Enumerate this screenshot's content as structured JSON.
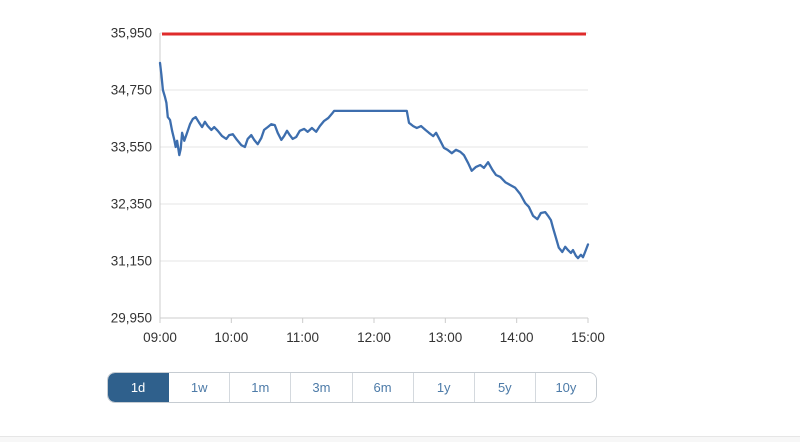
{
  "colors": {
    "line_blue": "#3d6eae",
    "limit_red": "#df2b2b",
    "gridline": "#e6e6e6",
    "axis": "#cccccc",
    "axis_text": "#333333",
    "selected_range_bg": "#2f608c",
    "range_text": "#4d7ba8"
  },
  "ranges": {
    "items": [
      {
        "label": "1d",
        "selected": true
      },
      {
        "label": "1w",
        "selected": false
      },
      {
        "label": "1m",
        "selected": false
      },
      {
        "label": "3m",
        "selected": false
      },
      {
        "label": "6m",
        "selected": false
      },
      {
        "label": "1y",
        "selected": false
      },
      {
        "label": "5y",
        "selected": false
      },
      {
        "label": "10y",
        "selected": false
      }
    ]
  },
  "chart_data": {
    "type": "line",
    "title": "",
    "xlabel": "",
    "ylabel": "",
    "grid": "horizontal-only",
    "legend": "none",
    "ylim": [
      29950,
      35950
    ],
    "xlim_hours": [
      9,
      15
    ],
    "y_ticks": [
      {
        "v": 35950,
        "label": "35,950"
      },
      {
        "v": 34750,
        "label": "34,750"
      },
      {
        "v": 33550,
        "label": "33,550"
      },
      {
        "v": 32350,
        "label": "32,350"
      },
      {
        "v": 31150,
        "label": "31,150"
      },
      {
        "v": 29950,
        "label": "29,950"
      }
    ],
    "x_ticks": [
      {
        "t": 9,
        "label": "09:00"
      },
      {
        "t": 10,
        "label": "10:00"
      },
      {
        "t": 11,
        "label": "11:00"
      },
      {
        "t": 12,
        "label": "12:00"
      },
      {
        "t": 13,
        "label": "13:00"
      },
      {
        "t": 14,
        "label": "14:00"
      },
      {
        "t": 15,
        "label": "15:00"
      }
    ],
    "red_line": {
      "name": "upper-limit-line",
      "value": 35930
    },
    "series": [
      {
        "name": "price",
        "points": [
          [
            9.0,
            35320
          ],
          [
            9.02,
            35070
          ],
          [
            9.04,
            34750
          ],
          [
            9.07,
            34600
          ],
          [
            9.09,
            34480
          ],
          [
            9.11,
            34180
          ],
          [
            9.14,
            34120
          ],
          [
            9.17,
            33890
          ],
          [
            9.2,
            33700
          ],
          [
            9.22,
            33550
          ],
          [
            9.24,
            33680
          ],
          [
            9.27,
            33380
          ],
          [
            9.29,
            33510
          ],
          [
            9.31,
            33850
          ],
          [
            9.34,
            33680
          ],
          [
            9.38,
            33850
          ],
          [
            9.42,
            34030
          ],
          [
            9.46,
            34140
          ],
          [
            9.5,
            34180
          ],
          [
            9.55,
            34060
          ],
          [
            9.59,
            33970
          ],
          [
            9.63,
            34080
          ],
          [
            9.67,
            33990
          ],
          [
            9.72,
            33910
          ],
          [
            9.76,
            33970
          ],
          [
            9.81,
            33890
          ],
          [
            9.87,
            33780
          ],
          [
            9.93,
            33720
          ],
          [
            9.97,
            33800
          ],
          [
            10.02,
            33820
          ],
          [
            10.08,
            33700
          ],
          [
            10.14,
            33590
          ],
          [
            10.19,
            33550
          ],
          [
            10.23,
            33720
          ],
          [
            10.28,
            33800
          ],
          [
            10.32,
            33700
          ],
          [
            10.37,
            33610
          ],
          [
            10.42,
            33740
          ],
          [
            10.46,
            33910
          ],
          [
            10.51,
            33970
          ],
          [
            10.56,
            34030
          ],
          [
            10.61,
            34010
          ],
          [
            10.65,
            33850
          ],
          [
            10.7,
            33700
          ],
          [
            10.74,
            33780
          ],
          [
            10.78,
            33890
          ],
          [
            10.82,
            33800
          ],
          [
            10.86,
            33720
          ],
          [
            10.91,
            33760
          ],
          [
            10.96,
            33890
          ],
          [
            11.02,
            33930
          ],
          [
            11.07,
            33870
          ],
          [
            11.13,
            33950
          ],
          [
            11.19,
            33870
          ],
          [
            11.24,
            33990
          ],
          [
            11.3,
            34100
          ],
          [
            11.36,
            34160
          ],
          [
            11.41,
            34250
          ],
          [
            11.44,
            34310
          ],
          [
            12.46,
            34310
          ],
          [
            12.49,
            34060
          ],
          [
            12.55,
            33990
          ],
          [
            12.6,
            33950
          ],
          [
            12.66,
            33990
          ],
          [
            12.72,
            33910
          ],
          [
            12.77,
            33850
          ],
          [
            12.83,
            33780
          ],
          [
            12.87,
            33850
          ],
          [
            12.93,
            33680
          ],
          [
            12.98,
            33530
          ],
          [
            13.03,
            33490
          ],
          [
            13.09,
            33420
          ],
          [
            13.15,
            33490
          ],
          [
            13.21,
            33450
          ],
          [
            13.26,
            33380
          ],
          [
            13.32,
            33210
          ],
          [
            13.37,
            33050
          ],
          [
            13.43,
            33130
          ],
          [
            13.49,
            33170
          ],
          [
            13.54,
            33110
          ],
          [
            13.6,
            33230
          ],
          [
            13.66,
            33070
          ],
          [
            13.71,
            32960
          ],
          [
            13.77,
            32920
          ],
          [
            13.84,
            32810
          ],
          [
            13.91,
            32750
          ],
          [
            13.98,
            32690
          ],
          [
            14.05,
            32560
          ],
          [
            14.12,
            32370
          ],
          [
            14.17,
            32290
          ],
          [
            14.23,
            32100
          ],
          [
            14.29,
            32030
          ],
          [
            14.34,
            32160
          ],
          [
            14.4,
            32180
          ],
          [
            14.44,
            32100
          ],
          [
            14.48,
            32010
          ],
          [
            14.51,
            31850
          ],
          [
            14.55,
            31640
          ],
          [
            14.59,
            31430
          ],
          [
            14.64,
            31340
          ],
          [
            14.68,
            31450
          ],
          [
            14.72,
            31380
          ],
          [
            14.76,
            31320
          ],
          [
            14.79,
            31380
          ],
          [
            14.83,
            31260
          ],
          [
            14.86,
            31210
          ],
          [
            14.9,
            31280
          ],
          [
            14.93,
            31230
          ],
          [
            14.96,
            31340
          ],
          [
            15.0,
            31500
          ]
        ]
      }
    ]
  }
}
